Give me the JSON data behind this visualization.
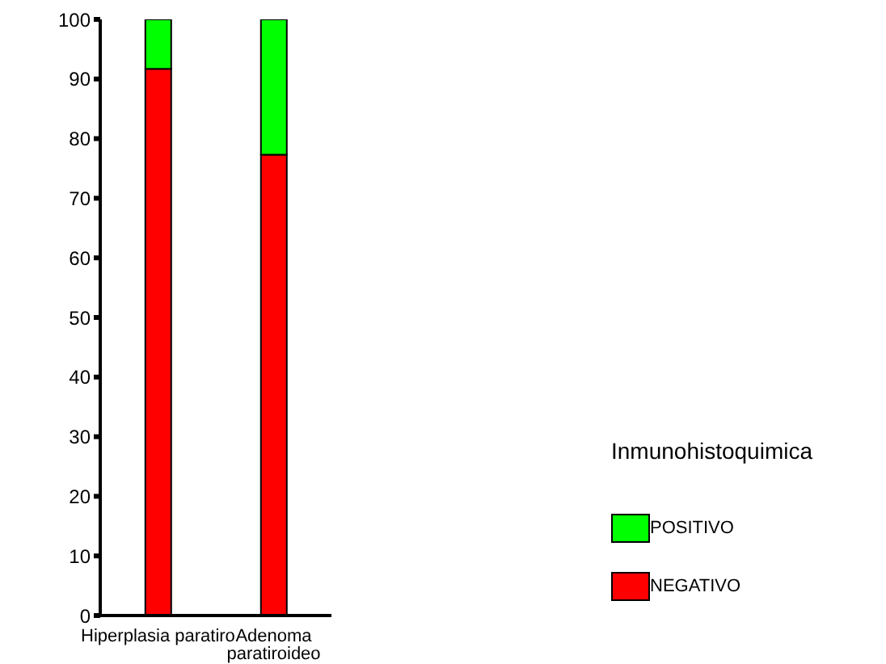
{
  "chart_data": {
    "type": "bar",
    "stacked": true,
    "categories": [
      "Hiperplasia paratiro",
      "Adenoma paratiroideo"
    ],
    "series": [
      {
        "name": "NEGATIVO",
        "color": "#ff0000",
        "values": [
          91.7,
          77.3
        ]
      },
      {
        "name": "POSITIVO",
        "color": "#00ff00",
        "values": [
          8.3,
          22.7
        ]
      }
    ],
    "ylim": [
      0,
      100
    ],
    "yticks": [
      0,
      10,
      20,
      30,
      40,
      50,
      60,
      70,
      80,
      90,
      100
    ],
    "grid": false,
    "legend": "bottom right",
    "legend_title": "Inmunohistoquimica"
  }
}
